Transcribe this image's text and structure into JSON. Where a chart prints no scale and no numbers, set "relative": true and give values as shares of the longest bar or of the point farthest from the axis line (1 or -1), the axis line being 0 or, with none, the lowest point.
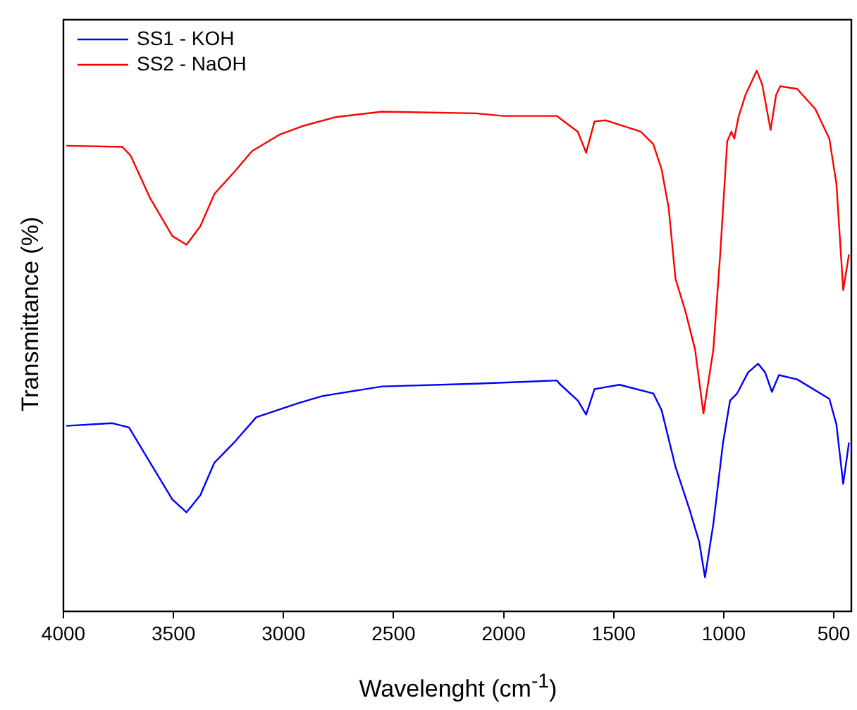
{
  "chart_data": {
    "type": "line",
    "xlabel": "Wavelenght (cm$^{-1}$)",
    "ylabel": "Transmittance (%)",
    "relative": true,
    "legend": "top left",
    "grid": false,
    "marker": "none",
    "line_style": "solid",
    "xlim": [
      4000,
      420
    ],
    "xticks": [
      4000,
      3500,
      3000,
      2500,
      2000,
      1500,
      1000,
      500
    ],
    "series": [
      {
        "name": "SS1 - KOH",
        "color": "#0000ff",
        "x": [
          3987,
          3778,
          3702,
          3606,
          3505,
          3441,
          3378,
          3314,
          3225,
          3124,
          2933,
          2825,
          2552,
          2127,
          1758,
          1746,
          1663,
          1625,
          1587,
          1473,
          1320,
          1282,
          1219,
          1155,
          1111,
          1085,
          1047,
          1003,
          971,
          939,
          889,
          844,
          812,
          781,
          749,
          666,
          520,
          488,
          457,
          431
        ],
        "values": [
          0.343,
          0.348,
          0.34,
          0.275,
          0.207,
          0.183,
          0.215,
          0.275,
          0.312,
          0.359,
          0.385,
          0.398,
          0.416,
          0.421,
          0.427,
          0.421,
          0.39,
          0.364,
          0.411,
          0.419,
          0.403,
          0.372,
          0.267,
          0.188,
          0.128,
          0.063,
          0.162,
          0.312,
          0.39,
          0.403,
          0.442,
          0.458,
          0.442,
          0.406,
          0.437,
          0.429,
          0.393,
          0.346,
          0.236,
          0.312
        ]
      },
      {
        "name": "SS2 - NaOH",
        "color": "#ff0000",
        "x": [
          3987,
          3733,
          3695,
          3606,
          3505,
          3441,
          3378,
          3314,
          3225,
          3143,
          3016,
          2908,
          2762,
          2552,
          2127,
          2000,
          1758,
          1663,
          1625,
          1587,
          1536,
          1377,
          1320,
          1282,
          1250,
          1219,
          1174,
          1130,
          1092,
          1047,
          1016,
          984,
          965,
          952,
          933,
          901,
          850,
          825,
          787,
          762,
          743,
          666,
          584,
          520,
          488,
          457,
          431
        ],
        "values": [
          0.861,
          0.859,
          0.843,
          0.764,
          0.694,
          0.678,
          0.712,
          0.772,
          0.812,
          0.851,
          0.882,
          0.898,
          0.914,
          0.924,
          0.921,
          0.916,
          0.916,
          0.887,
          0.848,
          0.906,
          0.908,
          0.887,
          0.864,
          0.817,
          0.746,
          0.615,
          0.555,
          0.484,
          0.366,
          0.484,
          0.66,
          0.869,
          0.887,
          0.874,
          0.914,
          0.955,
          1,
          0.974,
          0.89,
          0.955,
          0.971,
          0.966,
          0.929,
          0.874,
          0.791,
          0.594,
          0.66
        ]
      }
    ]
  }
}
